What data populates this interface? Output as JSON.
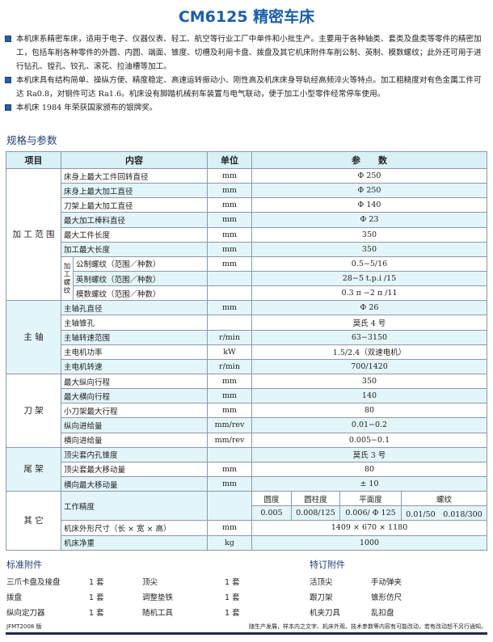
{
  "title": "CM6125 精密车床",
  "intro": [
    "本机床系精密车床，适用于电子、仪器仪表、轻工、航空等行业工厂中单件和小批生产。主要用于各种轴类、套类及盘类等零件的精密加工，包括车削各种零件的外圆、内圆、端面、锥度、切槽及利用卡盘、拨盘及其它机床附件车削公制、英制、模数螺纹；此外还可用于进行钻孔、镗孔、铰孔、滚花、拉油槽等加工。",
    "本机床具有结构简单、操纵方便、精度稳定、高速运转振动小、刚性高及机床床身导轨经高频淬火等特点。加工粗糙度对有色金属工件可达 Ra0.8，对钢件可达 Ra1.6。机床设有脚踏机械刹车装置与电气联动，便于加工小型零件经常停车使用。",
    "本机床 1984 年荣获国家颁布的银牌奖。"
  ],
  "spec_heading": "规格与参数",
  "table": {
    "headers": [
      "项目",
      "内容",
      "单位",
      "参　　数"
    ],
    "groups": {
      "g1": "加 工 范 围",
      "g2": "主 轴",
      "g3": "刀 架",
      "g4": "尾 架",
      "g5": "其 它",
      "thread": "加工螺纹"
    },
    "rows": [
      [
        "床身上最大工件回转直径",
        "mm",
        "Φ 250"
      ],
      [
        "床身上最大加工直径",
        "mm",
        "Φ 250"
      ],
      [
        "刀架上最大加工直径",
        "mm",
        "Φ 140"
      ],
      [
        "最大加工棒料直径",
        "mm",
        "Φ 23"
      ],
      [
        "最大工件长度",
        "mm",
        "350"
      ],
      [
        "加工最大长度",
        "mm",
        "350"
      ],
      [
        "公制螺纹（范围／种数）",
        "mm",
        "0.5−5/16"
      ],
      [
        "英制螺纹（范围／种数）",
        "",
        "28−5 t.p.i /15"
      ],
      [
        "模数螺纹（范围／种数）",
        "",
        "0.3 π −2 π /11"
      ],
      [
        "主轴孔直径",
        "mm",
        "Φ 26"
      ],
      [
        "主轴锥孔",
        "",
        "莫氏 4 号"
      ],
      [
        "主轴转速范围",
        "r/min",
        "63−3150"
      ],
      [
        "主电机功率",
        "kW",
        "1.5/2.4（双速电机）"
      ],
      [
        "主电机转速",
        "r/min",
        "700/1420"
      ],
      [
        "最大纵向行程",
        "mm",
        "350"
      ],
      [
        "最大横向行程",
        "mm",
        "140"
      ],
      [
        "小刀架最大行程",
        "mm",
        "80"
      ],
      [
        "纵向进给量",
        "mm/rev",
        "0.01−0.2"
      ],
      [
        "横向进给量",
        "mm/rev",
        "0.005−0.1"
      ],
      [
        "顶尖套内孔锥度",
        "",
        "莫氏 3 号"
      ],
      [
        "顶尖套最大移动量",
        "mm",
        "80"
      ],
      [
        "横向最大移动量",
        "mm",
        "± 10"
      ],
      [
        "机床外形尺寸（长 × 宽 × 高）",
        "mm",
        "1409 × 670 × 1180"
      ],
      [
        "机床净重",
        "kg",
        "1000"
      ]
    ],
    "precision": {
      "label": "工作精度",
      "heads": [
        "圆度",
        "圆柱度",
        "平面度",
        "螺纹"
      ],
      "values": [
        "0.005",
        "0.008/125",
        "0.006/ Φ 125",
        "0.01/50　0.018/300"
      ]
    }
  },
  "standard": {
    "heading": "标准附件",
    "items": [
      [
        "三爪卡盘及接盘",
        "1 套"
      ],
      [
        "拨盘",
        "1 套"
      ],
      [
        "纵向定刀器",
        "1 套"
      ],
      [
        "顶尖",
        "1 套"
      ],
      [
        "调整垫铁",
        "1 套"
      ],
      [
        "随机工具",
        "1 套"
      ]
    ]
  },
  "special": {
    "heading": "特订附件",
    "items": [
      "活顶尖",
      "跟刀架",
      "机夹刀具",
      "手动弹夹",
      "锥形仿尺",
      "乱扣盘"
    ]
  },
  "footer": {
    "left": "JFMT2008 版",
    "right": "随生产发展，样本内之文字、机床外观、技术参数等内容有可能改动，若有改动恕不另行通知。"
  },
  "colors": {
    "title": "#1a5fa8",
    "row_shade": "#e3f5f9",
    "header": "#d9f1f6",
    "footer_bar": "#1a2a4a"
  }
}
